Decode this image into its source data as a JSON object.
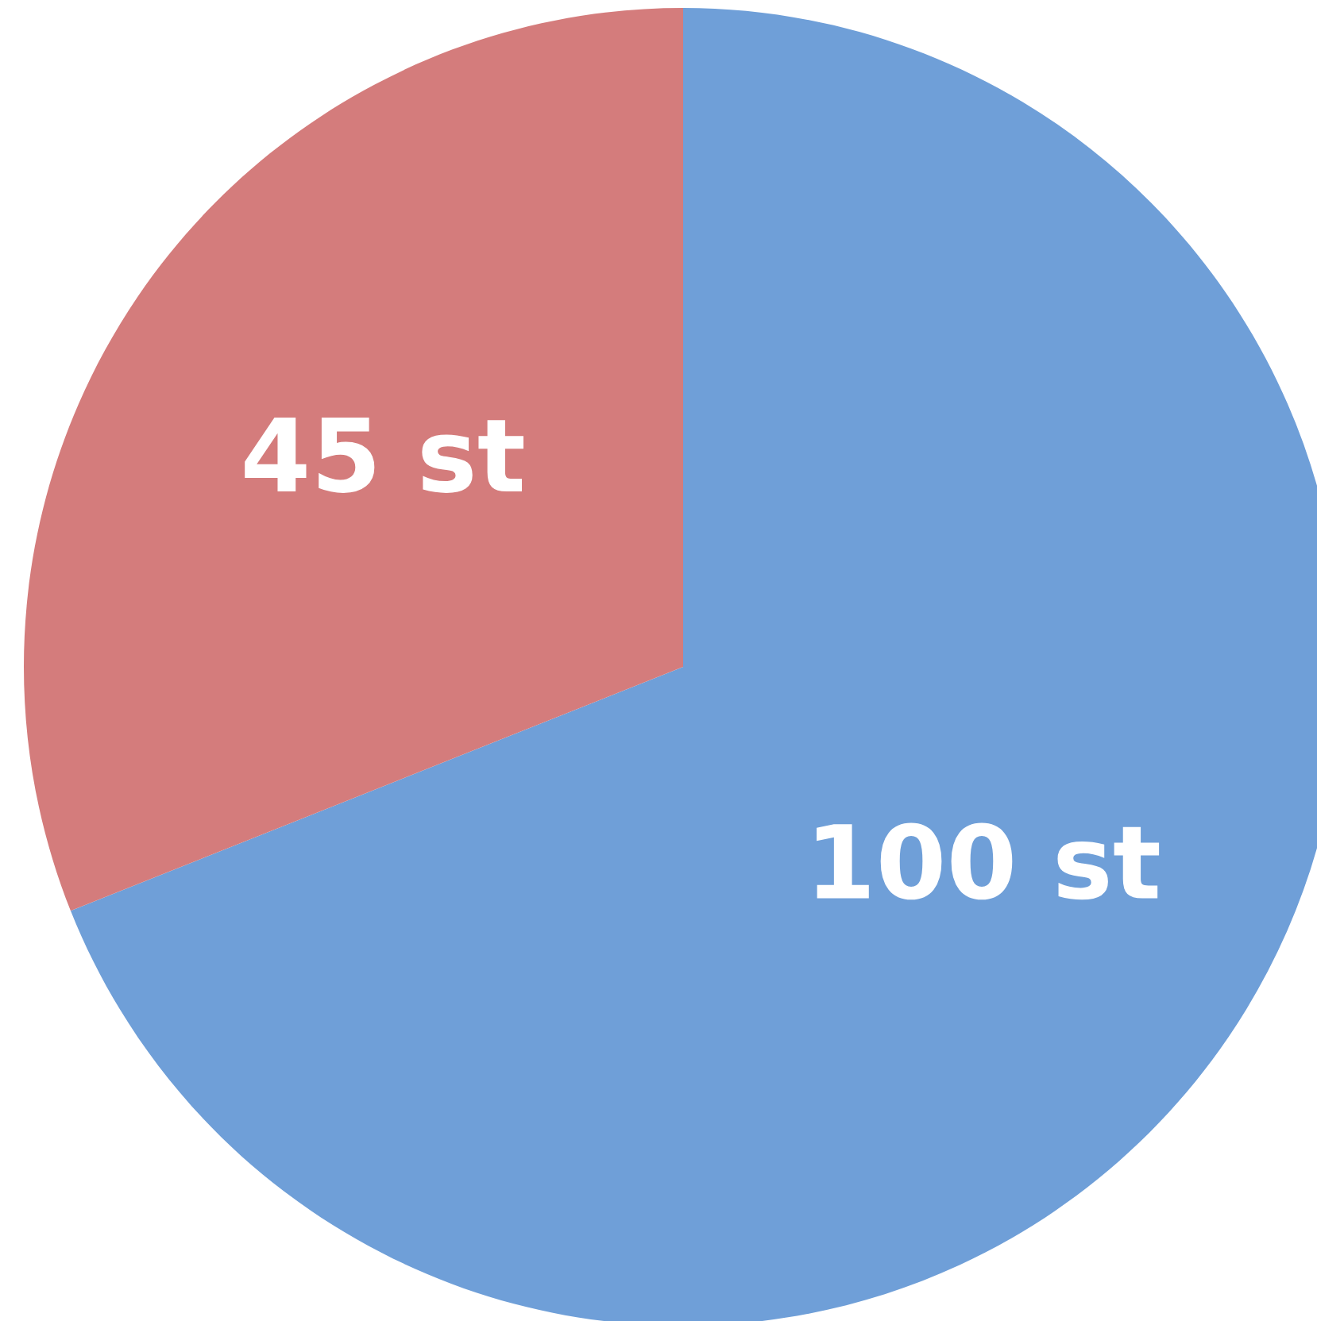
{
  "chart_data": {
    "type": "pie",
    "categories": [
      null,
      null
    ],
    "values": [
      100,
      45
    ],
    "colors": [
      "#6f9fd8",
      "#d47c7c"
    ],
    "value_labels": [
      "100 st",
      "45 st"
    ]
  }
}
